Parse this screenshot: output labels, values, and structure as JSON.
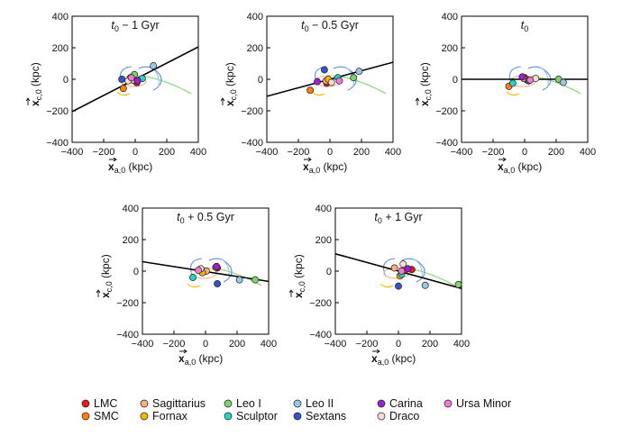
{
  "figure": {
    "legend": [
      {
        "label": "LMC",
        "color": "#e41a1c"
      },
      {
        "label": "SMC",
        "color": "#ff7f0e"
      },
      {
        "label": "Sagittarius",
        "color": "#f4b183"
      },
      {
        "label": "Fornax",
        "color": "#f5b800"
      },
      {
        "label": "Leo I",
        "color": "#7ed36b"
      },
      {
        "label": "Sculptor",
        "color": "#27d3c8"
      },
      {
        "label": "Leo II",
        "color": "#9ac8e8"
      },
      {
        "label": "Sextans",
        "color": "#3355cc"
      },
      {
        "label": "Carina",
        "color": "#9b1fd6"
      },
      {
        "label": "Draco",
        "color": "#f7dcd6"
      },
      {
        "label": "Ursa Minor",
        "color": "#f07ad6"
      }
    ]
  },
  "chart_data": [
    {
      "type": "scatter",
      "title": "t0 − 1 Gyr",
      "title_parts": {
        "italic": "t",
        "sub": "0",
        "rest": " − 1 Gyr"
      },
      "xlabel": "x a,0 (kpc)",
      "ylabel": "x c,0 (kpc)",
      "xlim": [
        -400,
        400
      ],
      "ylim": [
        -400,
        400
      ],
      "xticks": [
        "−400",
        "−200",
        "0",
        "200",
        "400"
      ],
      "yticks": [
        "−400",
        "−200",
        "0",
        "200",
        "400"
      ],
      "line": {
        "x": [
          -400,
          400
        ],
        "y": [
          -205,
          205
        ]
      },
      "points": [
        {
          "name": "LMC",
          "x": 10,
          "y": -22
        },
        {
          "name": "SMC",
          "x": -75,
          "y": -58
        },
        {
          "name": "Sagittarius",
          "x": -15,
          "y": -5
        },
        {
          "name": "Fornax",
          "x": -30,
          "y": 10
        },
        {
          "name": "Leo I",
          "x": -5,
          "y": 30
        },
        {
          "name": "Sculptor",
          "x": 45,
          "y": 5
        },
        {
          "name": "Leo II",
          "x": 115,
          "y": 85
        },
        {
          "name": "Sextans",
          "x": -85,
          "y": 0
        },
        {
          "name": "Carina",
          "x": 15,
          "y": -10
        },
        {
          "name": "Draco",
          "x": -45,
          "y": -10
        },
        {
          "name": "Ursa Minor",
          "x": -25,
          "y": 10
        }
      ]
    },
    {
      "type": "scatter",
      "title": "t0 − 0.5 Gyr",
      "title_parts": {
        "italic": "t",
        "sub": "0",
        "rest": " − 0.5 Gyr"
      },
      "xlabel": "x a,0 (kpc)",
      "ylabel": "x c,0 (kpc)",
      "xlim": [
        -400,
        400
      ],
      "ylim": [
        -400,
        400
      ],
      "xticks": [
        "−400",
        "−200",
        "0",
        "200",
        "400"
      ],
      "yticks": [
        "−400",
        "−200",
        "0",
        "200",
        "400"
      ],
      "line": {
        "x": [
          -400,
          400
        ],
        "y": [
          -108,
          108
        ]
      },
      "points": [
        {
          "name": "LMC",
          "x": -20,
          "y": -25
        },
        {
          "name": "SMC",
          "x": -125,
          "y": -70
        },
        {
          "name": "Sagittarius",
          "x": -25,
          "y": -10
        },
        {
          "name": "Fornax",
          "x": -10,
          "y": 0
        },
        {
          "name": "Leo I",
          "x": 150,
          "y": 10
        },
        {
          "name": "Sculptor",
          "x": 50,
          "y": 10
        },
        {
          "name": "Leo II",
          "x": 185,
          "y": 50
        },
        {
          "name": "Sextans",
          "x": -35,
          "y": 60
        },
        {
          "name": "Carina",
          "x": -80,
          "y": -15
        },
        {
          "name": "Draco",
          "x": 10,
          "y": -20
        },
        {
          "name": "Ursa Minor",
          "x": 60,
          "y": -10
        }
      ]
    },
    {
      "type": "scatter",
      "title": "t0",
      "title_parts": {
        "italic": "t",
        "sub": "0",
        "rest": ""
      },
      "xlabel": "x a,0 (kpc)",
      "ylabel": "x c,0 (kpc)",
      "xlim": [
        -400,
        400
      ],
      "ylim": [
        -400,
        400
      ],
      "xticks": [
        "−400",
        "−200",
        "0",
        "200",
        "400"
      ],
      "yticks": [
        "−400",
        "−200",
        "0",
        "200",
        "400"
      ],
      "line": {
        "x": [
          -400,
          400
        ],
        "y": [
          0,
          0
        ]
      },
      "points": [
        {
          "name": "LMC",
          "x": 0,
          "y": 10
        },
        {
          "name": "SMC",
          "x": -100,
          "y": -45
        },
        {
          "name": "Sagittarius",
          "x": 15,
          "y": -5
        },
        {
          "name": "Fornax",
          "x": -5,
          "y": 5
        },
        {
          "name": "Leo I",
          "x": 215,
          "y": 0
        },
        {
          "name": "Sculptor",
          "x": -75,
          "y": -25
        },
        {
          "name": "Leo II",
          "x": 245,
          "y": -20
        },
        {
          "name": "Sextans",
          "x": 25,
          "y": -10
        },
        {
          "name": "Carina",
          "x": -15,
          "y": 15
        },
        {
          "name": "Draco",
          "x": 70,
          "y": 5
        },
        {
          "name": "Ursa Minor",
          "x": 35,
          "y": -5
        }
      ]
    },
    {
      "type": "scatter",
      "title": "t0 + 0.5 Gyr",
      "title_parts": {
        "italic": "t",
        "sub": "0",
        "rest": " + 0.5 Gyr"
      },
      "xlabel": "x a,0 (kpc)",
      "ylabel": "x c,0 (kpc)",
      "xlim": [
        -400,
        400
      ],
      "ylim": [
        -400,
        400
      ],
      "xticks": [
        "−400",
        "−200",
        "0",
        "200",
        "400"
      ],
      "yticks": [
        "−400",
        "−200",
        "0",
        "200",
        "400"
      ],
      "line": {
        "x": [
          -400,
          400
        ],
        "y": [
          60,
          -65
        ]
      },
      "points": [
        {
          "name": "LMC",
          "x": 75,
          "y": 20
        },
        {
          "name": "SMC",
          "x": 65,
          "y": 25
        },
        {
          "name": "Sagittarius",
          "x": 5,
          "y": 0
        },
        {
          "name": "Fornax",
          "x": -20,
          "y": -10
        },
        {
          "name": "Leo I",
          "x": 315,
          "y": -55
        },
        {
          "name": "Sculptor",
          "x": -80,
          "y": -40
        },
        {
          "name": "Leo II",
          "x": 215,
          "y": -55
        },
        {
          "name": "Sextans",
          "x": 75,
          "y": -80
        },
        {
          "name": "Carina",
          "x": 70,
          "y": 30
        },
        {
          "name": "Draco",
          "x": -30,
          "y": 15
        },
        {
          "name": "Ursa Minor",
          "x": -45,
          "y": 5
        }
      ]
    },
    {
      "type": "scatter",
      "title": "t0 + 1 Gyr",
      "title_parts": {
        "italic": "t",
        "sub": "0",
        "rest": " + 1 Gyr"
      },
      "xlabel": "x a,0 (kpc)",
      "ylabel": "x c,0 (kpc)",
      "xlim": [
        -400,
        400
      ],
      "ylim": [
        -400,
        400
      ],
      "xticks": [
        "−400",
        "−200",
        "0",
        "200",
        "400"
      ],
      "yticks": [
        "−400",
        "−200",
        "0",
        "200",
        "400"
      ],
      "line": {
        "x": [
          -400,
          400
        ],
        "y": [
          110,
          -110
        ]
      },
      "points": [
        {
          "name": "LMC",
          "x": 85,
          "y": 10
        },
        {
          "name": "SMC",
          "x": 45,
          "y": 10
        },
        {
          "name": "Sagittarius",
          "x": -25,
          "y": 20
        },
        {
          "name": "Fornax",
          "x": 10,
          "y": -30
        },
        {
          "name": "Leo I",
          "x": 380,
          "y": -85
        },
        {
          "name": "Sculptor",
          "x": 20,
          "y": -20
        },
        {
          "name": "Leo II",
          "x": 170,
          "y": -90
        },
        {
          "name": "Sextans",
          "x": 0,
          "y": -95
        },
        {
          "name": "Carina",
          "x": 60,
          "y": 15
        },
        {
          "name": "Draco",
          "x": 30,
          "y": 45
        },
        {
          "name": "Ursa Minor",
          "x": 20,
          "y": 0
        }
      ]
    }
  ]
}
